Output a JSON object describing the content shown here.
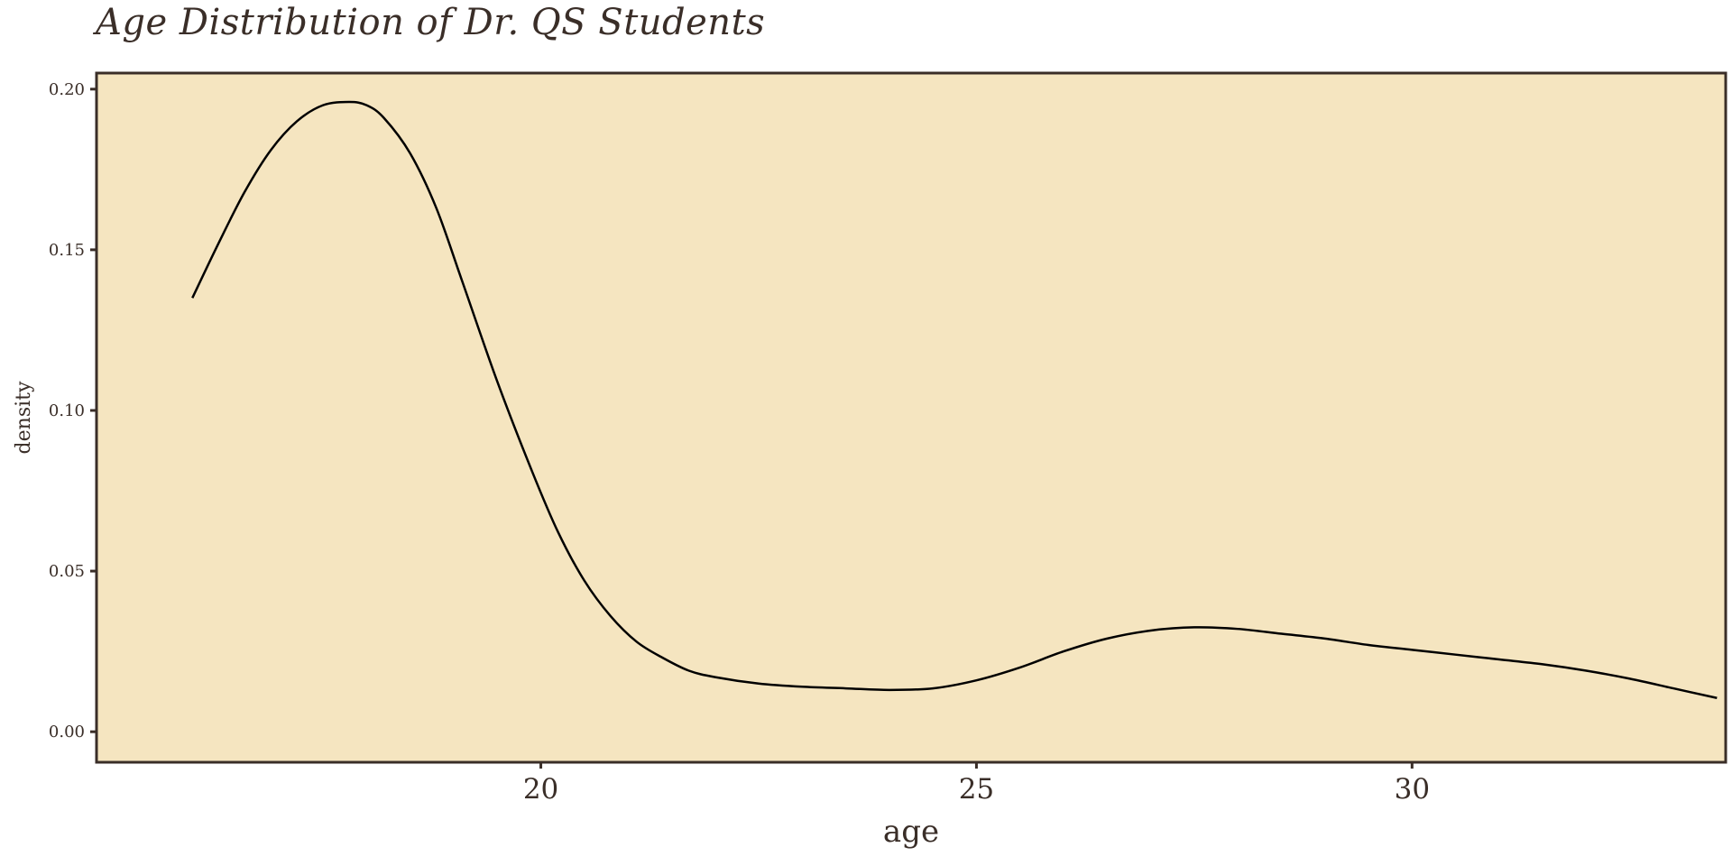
{
  "chart_data": {
    "type": "area",
    "title": "Age Distribution of Dr. QS Students",
    "xlabel": "age",
    "ylabel": "density",
    "xlim": [
      14.9,
      33.6
    ],
    "ylim": [
      -0.0095,
      0.205
    ],
    "x_ticks": [
      20,
      25,
      30
    ],
    "x_tick_labels": [
      "20",
      "25",
      "30"
    ],
    "y_ticks": [
      0.0,
      0.05,
      0.1,
      0.15,
      0.2
    ],
    "y_tick_labels": [
      "0.00",
      "0.05",
      "0.10",
      "0.15",
      "0.20"
    ],
    "grid": false,
    "legend": "none",
    "colors": {
      "panel_background": "#f5e5c0",
      "panel_border": "#3a2e28",
      "line": "#000000",
      "text": "#3a2e28"
    },
    "series": [
      {
        "x": [
          16.0,
          16.3,
          16.6,
          16.9,
          17.2,
          17.5,
          17.8,
          18.0,
          18.2,
          18.5,
          18.8,
          19.1,
          19.5,
          19.9,
          20.2,
          20.5,
          20.8,
          21.1,
          21.4,
          21.7,
          22.0,
          22.5,
          23.0,
          23.5,
          24.0,
          24.5,
          25.0,
          25.5,
          26.0,
          26.5,
          27.0,
          27.5,
          28.0,
          28.5,
          29.0,
          29.5,
          30.0,
          30.5,
          31.0,
          31.5,
          32.0,
          32.5,
          33.0,
          33.5
        ],
        "y": [
          0.135,
          0.152,
          0.168,
          0.181,
          0.19,
          0.195,
          0.196,
          0.195,
          0.191,
          0.18,
          0.163,
          0.14,
          0.109,
          0.081,
          0.062,
          0.047,
          0.036,
          0.028,
          0.023,
          0.019,
          0.017,
          0.015,
          0.014,
          0.0135,
          0.013,
          0.0135,
          0.016,
          0.02,
          0.025,
          0.029,
          0.0315,
          0.0325,
          0.032,
          0.0305,
          0.029,
          0.027,
          0.0255,
          0.024,
          0.0225,
          0.021,
          0.019,
          0.0165,
          0.0135,
          0.0105
        ]
      }
    ]
  }
}
